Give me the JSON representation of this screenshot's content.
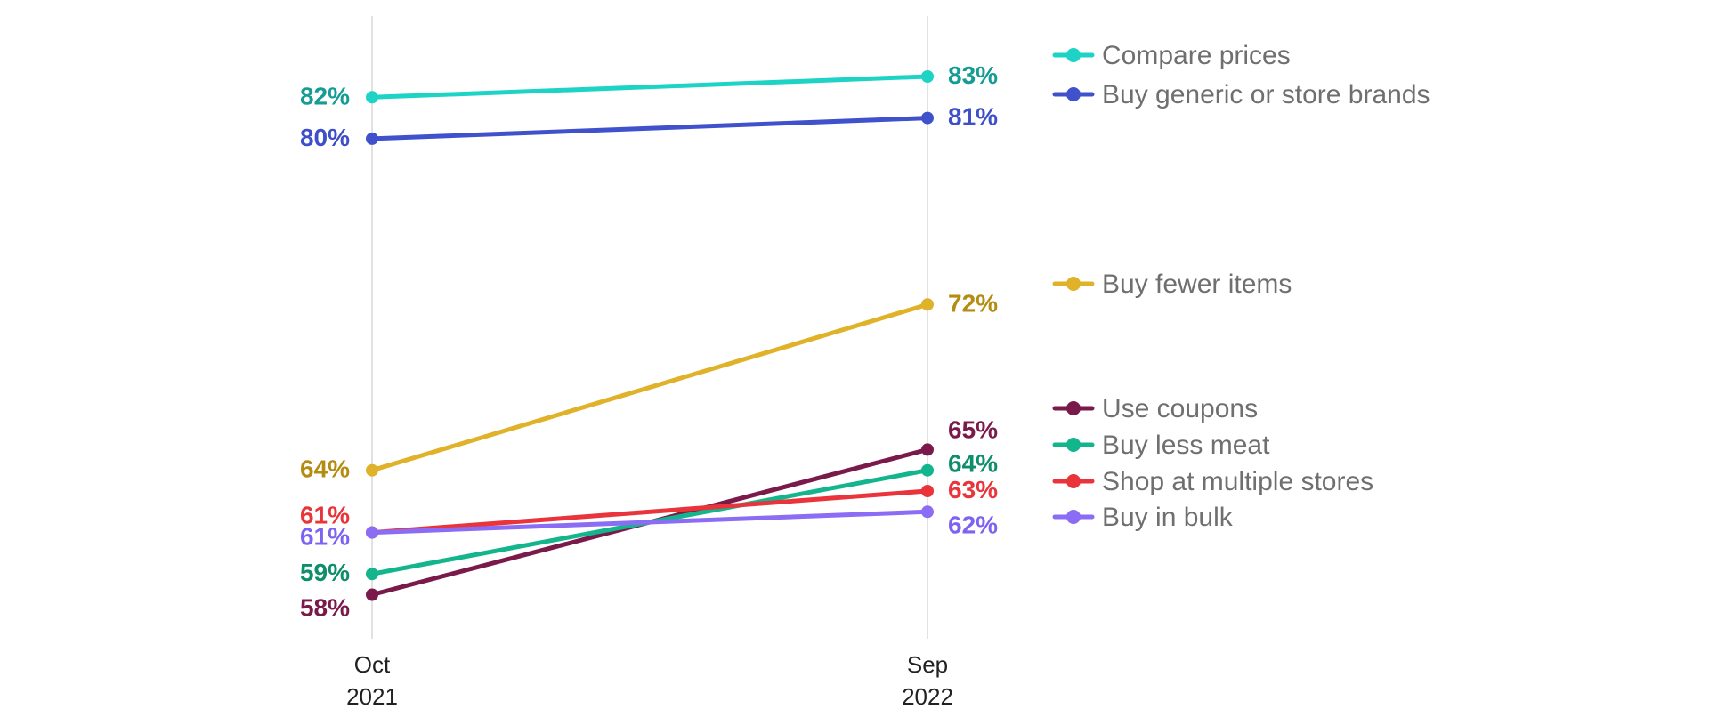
{
  "chart_data": {
    "type": "line",
    "categories": [
      "Oct 2021",
      "Sep 2022"
    ],
    "x_tick_lines": [
      [
        "Oct",
        "2021"
      ],
      [
        "Sep",
        "2022"
      ]
    ],
    "y_unit": "%",
    "ylim": [
      55,
      85
    ],
    "grid": "vertical lines at each category",
    "legend_placement": "right",
    "series": [
      {
        "name": "Compare prices",
        "values": [
          82,
          83
        ],
        "color": "#1dd3c6",
        "label_color": "#169c94"
      },
      {
        "name": "Buy generic or store brands",
        "values": [
          80,
          81
        ],
        "color": "#4051cc",
        "label_color": "#3f4fc8"
      },
      {
        "name": "Buy fewer items",
        "values": [
          64,
          72
        ],
        "color": "#e0b229",
        "label_color": "#b48c12"
      },
      {
        "name": "Use coupons",
        "values": [
          58,
          65
        ],
        "color": "#7a1a4a",
        "label_color": "#7a1a4a"
      },
      {
        "name": "Buy less meat",
        "values": [
          59,
          64
        ],
        "color": "#12b58c",
        "label_color": "#0f8e6c"
      },
      {
        "name": "Shop at multiple stores",
        "values": [
          61,
          63
        ],
        "color": "#e8343a",
        "label_color": "#e8343a"
      },
      {
        "name": "Buy in bulk",
        "values": [
          61,
          62
        ],
        "color": "#8a6cf5",
        "label_color": "#7d63f0"
      }
    ]
  }
}
